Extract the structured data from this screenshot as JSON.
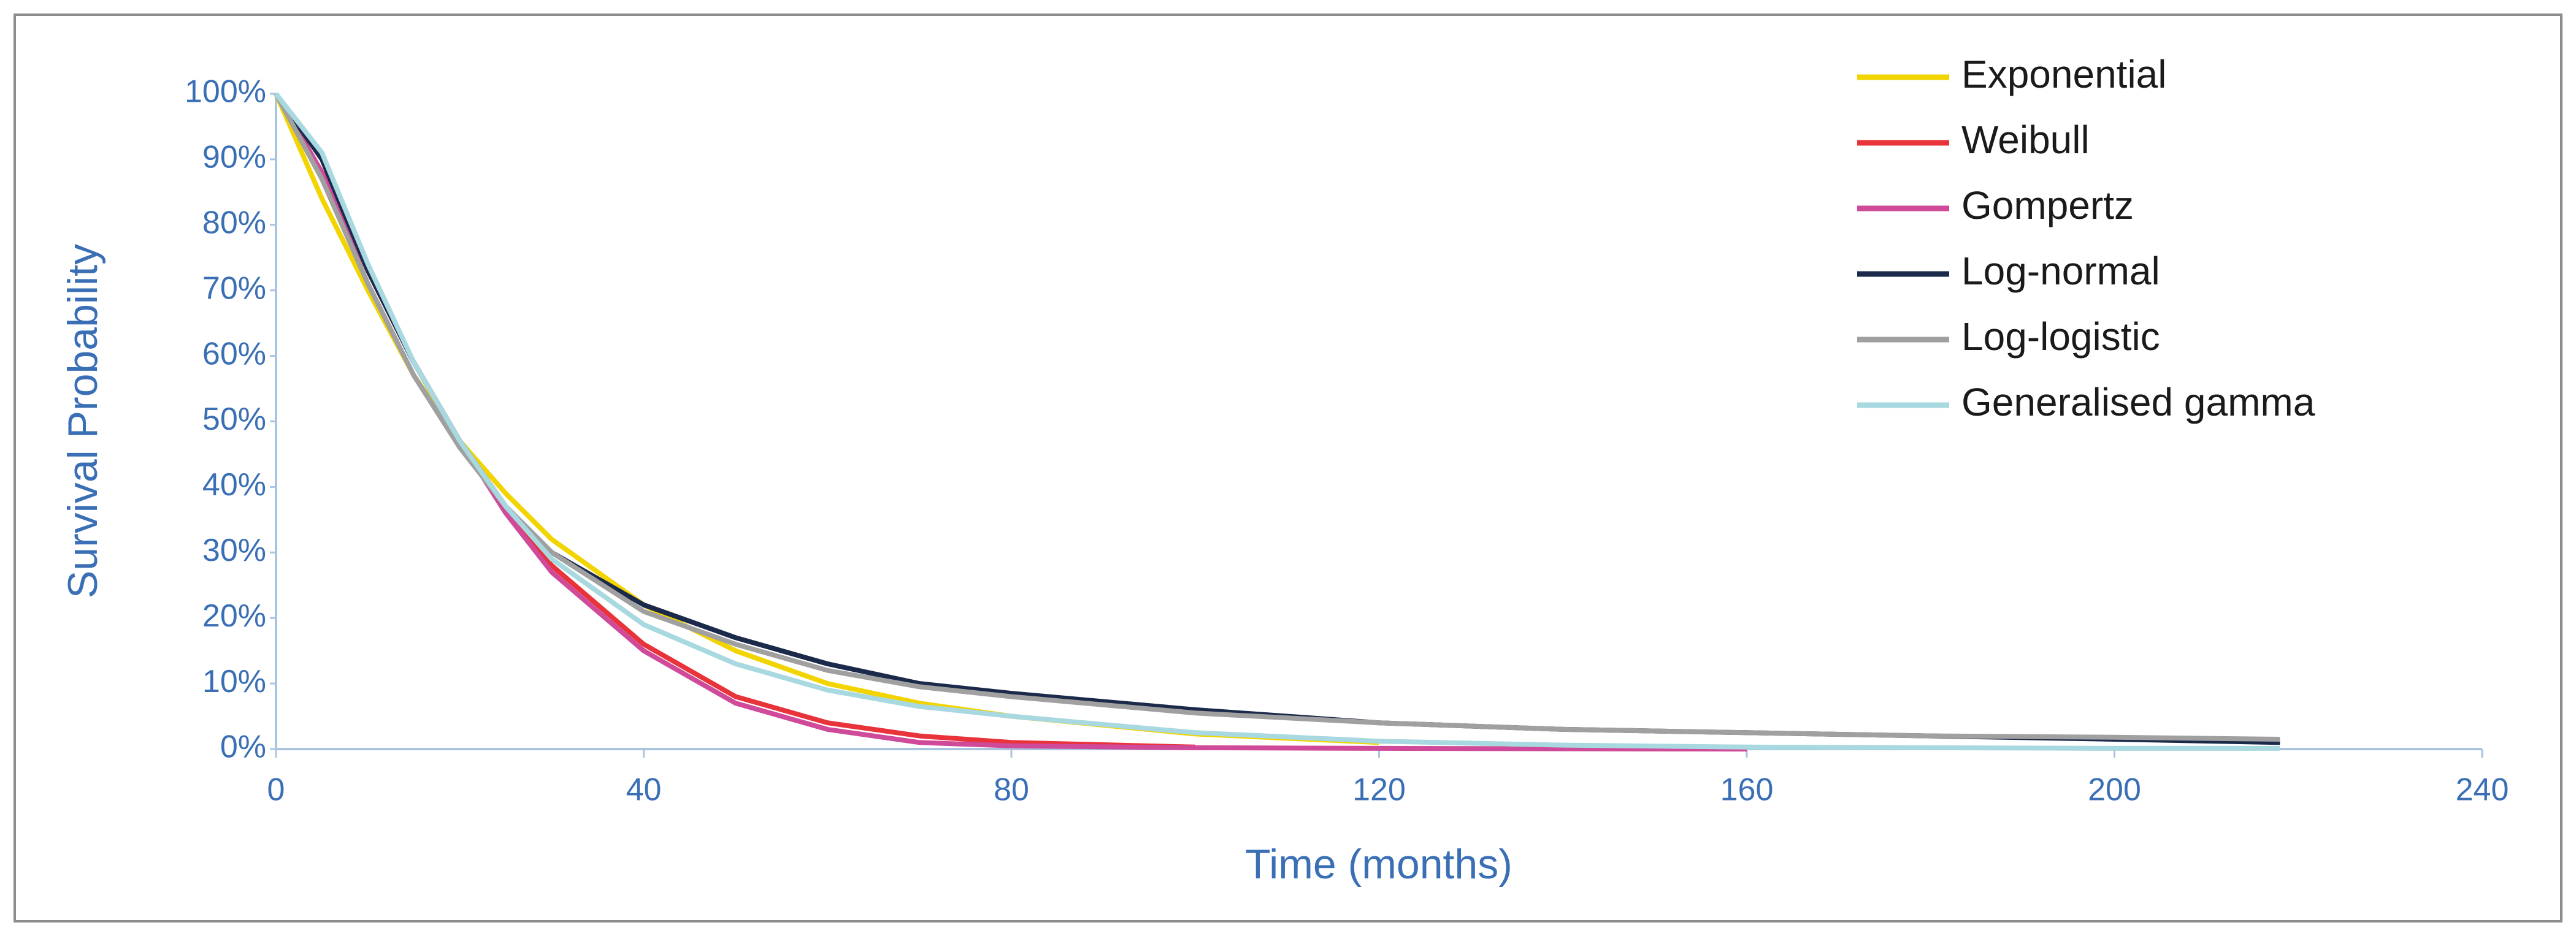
{
  "chart_data": {
    "type": "line",
    "x_label": "Time (months)",
    "y_label": "Survival Probability",
    "x": [
      0,
      5,
      10,
      15,
      20,
      25,
      30,
      40,
      50,
      60,
      70,
      80,
      100,
      120,
      140,
      160,
      180,
      200,
      218
    ],
    "series": [
      {
        "name": "Exponential",
        "color": "#f2d400",
        "values": [
          100,
          84,
          70,
          57,
          47,
          39,
          32,
          22,
          15,
          10,
          7,
          5,
          2.3,
          1,
          null,
          null,
          null,
          null,
          null
        ]
      },
      {
        "name": "Weibull",
        "color": "#e8333a",
        "values": [
          100,
          88,
          73,
          59,
          47,
          37,
          28,
          16,
          8,
          4,
          2,
          1,
          0.3,
          null,
          null,
          null,
          null,
          null,
          null
        ]
      },
      {
        "name": "Gompertz",
        "color": "#d04a9a",
        "values": [
          100,
          88,
          73,
          59,
          47,
          36,
          27,
          15,
          7,
          3,
          1,
          0.5,
          0.2,
          0.1,
          0.05,
          0,
          null,
          null,
          null
        ]
      },
      {
        "name": "Log-normal",
        "color": "#1b2a4a",
        "values": [
          100,
          90,
          73,
          59,
          47,
          37,
          30,
          22,
          17,
          13,
          10,
          8.5,
          6,
          4,
          3,
          2.5,
          2,
          1.5,
          1
        ]
      },
      {
        "name": "Log-logistic",
        "color": "#a0a0a0",
        "values": [
          100,
          87,
          71,
          57,
          46,
          37,
          30,
          21,
          16,
          12,
          9.5,
          8,
          5.5,
          4,
          3,
          2.5,
          2,
          1.8,
          1.5
        ]
      },
      {
        "name": "Generalised gamma",
        "color": "#a8d8e0",
        "values": [
          100,
          91,
          74,
          59,
          47,
          37,
          29,
          19,
          13,
          9,
          6.5,
          5,
          2.5,
          1.2,
          0.6,
          0.3,
          0.2,
          0.1,
          0.1
        ]
      }
    ],
    "xlim": [
      0,
      240
    ],
    "xticks": [
      0,
      40,
      80,
      120,
      160,
      200,
      240
    ],
    "ylim": [
      0,
      100
    ],
    "yticks": [
      {
        "value": 0,
        "label": "0%"
      },
      {
        "value": 10,
        "label": "10%"
      },
      {
        "value": 20,
        "label": "20%"
      },
      {
        "value": 30,
        "label": "30%"
      },
      {
        "value": 40,
        "label": "40%"
      },
      {
        "value": 50,
        "label": "50%"
      },
      {
        "value": 60,
        "label": "60%"
      },
      {
        "value": 70,
        "label": "70%"
      },
      {
        "value": 80,
        "label": "80%"
      },
      {
        "value": 90,
        "label": "90%"
      },
      {
        "value": 100,
        "label": "100%"
      }
    ],
    "grid": false,
    "legend": "top-right"
  }
}
